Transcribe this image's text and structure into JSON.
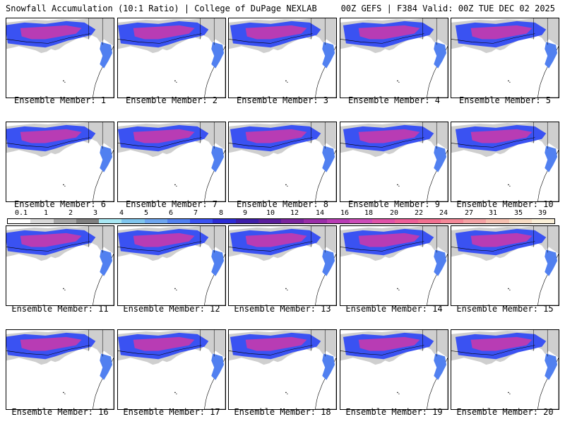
{
  "header": {
    "left_title": "Snowfall Accumulation (10:1 Ratio) | College of DuPage NEXLAB",
    "right_title": "00Z GEFS | F384 Valid: 00Z TUE DEC 02 2025"
  },
  "label_prefix": "Ensemble Member:",
  "members": [
    {
      "label": "Ensemble Member: 1"
    },
    {
      "label": "Ensemble Member: 2"
    },
    {
      "label": "Ensemble Member: 3"
    },
    {
      "label": "Ensemble Member: 4"
    },
    {
      "label": "Ensemble Member: 5"
    },
    {
      "label": "Ensemble Member: 6"
    },
    {
      "label": "Ensemble Member: 7"
    },
    {
      "label": "Ensemble Member: 8"
    },
    {
      "label": "Ensemble Member: 9"
    },
    {
      "label": "Ensemble Member: 10"
    },
    {
      "label": "Ensemble Member: 11"
    },
    {
      "label": "Ensemble Member: 12"
    },
    {
      "label": "Ensemble Member: 13"
    },
    {
      "label": "Ensemble Member: 14"
    },
    {
      "label": "Ensemble Member: 15"
    },
    {
      "label": "Ensemble Member: 16"
    },
    {
      "label": "Ensemble Member: 17"
    },
    {
      "label": "Ensemble Member: 18"
    },
    {
      "label": "Ensemble Member: 19"
    },
    {
      "label": "Ensemble Member: 20"
    }
  ],
  "colorbar": {
    "ticks": [
      "0.1",
      "1",
      "2",
      "3",
      "4",
      "5",
      "6",
      "7",
      "8",
      "9",
      "10",
      "12",
      "14",
      "16",
      "18",
      "20",
      "22",
      "24",
      "27",
      "31",
      "35",
      "39"
    ],
    "colors": [
      "#ffffff",
      "#d9d9d9",
      "#a6a6a6",
      "#7f7f7f",
      "#a8e8f4",
      "#7fc6ee",
      "#6da6f0",
      "#5180f0",
      "#3a52f2",
      "#2c2cd6",
      "#3e1ea8",
      "#5a1e9c",
      "#7a249e",
      "#9a2ea8",
      "#b83cb4",
      "#cc4cb8",
      "#e052a8",
      "#ee5e98",
      "#f27090",
      "#f48898",
      "#f4a2a4",
      "#f6c0b0",
      "#f8dcc4",
      "#fbf0d8"
    ]
  }
}
